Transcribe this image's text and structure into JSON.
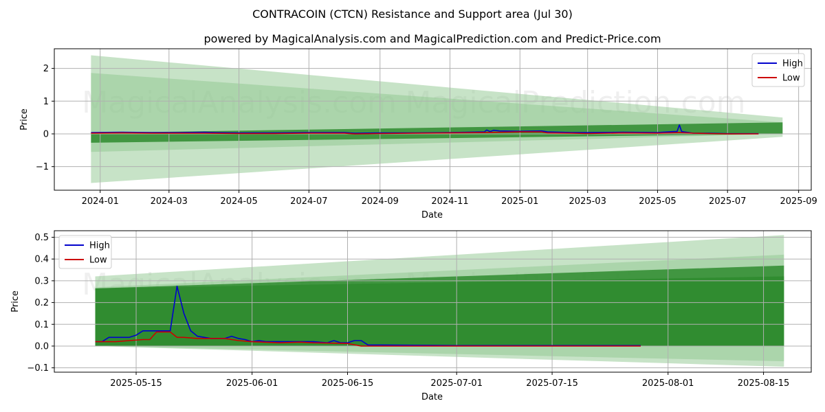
{
  "figure": {
    "title": "CONTRACOIN (CTCN) Resistance and Support area (Jul 30)",
    "subtitle": "powered by MagicalAnalysis.com and MagicalPrediction.com and Predict-Price.com",
    "watermarks": [
      "MagicalAnalysis.com",
      "MagicalPrediction.com"
    ]
  },
  "colors": {
    "high": "#0000cc",
    "low": "#cc0000",
    "band_dark": "#2e8b2e",
    "band_light": "#90c890",
    "grid": "#b0b0b0"
  },
  "chart_data": [
    {
      "type": "line",
      "title": "",
      "xlabel": "Date",
      "ylabel": "Price",
      "grid": true,
      "legend": "top-right",
      "xlim": [
        "2023-11-22",
        "2025-09-12"
      ],
      "ylim": [
        -1.72,
        2.6
      ],
      "x_ticks": [
        "2024-01",
        "2024-03",
        "2024-05",
        "2024-07",
        "2024-09",
        "2024-11",
        "2025-01",
        "2025-03",
        "2025-05",
        "2025-07",
        "2025-09"
      ],
      "x_tick_dates": [
        "2024-01-01",
        "2024-03-01",
        "2024-05-01",
        "2024-07-01",
        "2024-09-01",
        "2024-11-01",
        "2025-01-01",
        "2025-03-01",
        "2025-05-01",
        "2025-07-01",
        "2025-09-01"
      ],
      "y_ticks": [
        -1,
        0,
        1,
        2
      ],
      "y_tick_labels": [
        "−1",
        "0",
        "1",
        "2"
      ],
      "series": [
        {
          "name": "High",
          "color": "#0000cc",
          "points": [
            [
              "2023-12-24",
              0.04
            ],
            [
              "2024-01-20",
              0.05
            ],
            [
              "2024-02-15",
              0.04
            ],
            [
              "2024-03-10",
              0.04
            ],
            [
              "2024-04-01",
              0.05
            ],
            [
              "2024-04-10",
              0.04
            ],
            [
              "2024-05-01",
              0.03
            ],
            [
              "2024-06-01",
              0.03
            ],
            [
              "2024-07-01",
              0.04
            ],
            [
              "2024-08-01",
              0.04
            ],
            [
              "2024-08-10",
              0.02
            ],
            [
              "2024-09-01",
              0.03
            ],
            [
              "2024-10-01",
              0.03
            ],
            [
              "2024-11-01",
              0.04
            ],
            [
              "2024-12-01",
              0.06
            ],
            [
              "2024-12-03",
              0.12
            ],
            [
              "2024-12-06",
              0.07
            ],
            [
              "2024-12-09",
              0.11
            ],
            [
              "2024-12-14",
              0.09
            ],
            [
              "2025-01-01",
              0.08
            ],
            [
              "2025-01-20",
              0.09
            ],
            [
              "2025-01-25",
              0.06
            ],
            [
              "2025-02-15",
              0.04
            ],
            [
              "2025-03-01",
              0.04
            ],
            [
              "2025-04-01",
              0.05
            ],
            [
              "2025-05-01",
              0.04
            ],
            [
              "2025-05-15",
              0.07
            ],
            [
              "2025-05-18",
              0.07
            ],
            [
              "2025-05-20",
              0.275
            ],
            [
              "2025-05-22",
              0.07
            ],
            [
              "2025-06-01",
              0.02
            ],
            [
              "2025-06-15",
              0.02
            ],
            [
              "2025-07-01",
              0.005
            ],
            [
              "2025-07-28",
              0.005
            ]
          ]
        },
        {
          "name": "Low",
          "color": "#cc0000",
          "points": [
            [
              "2023-12-24",
              0.02
            ],
            [
              "2024-01-20",
              0.03
            ],
            [
              "2024-02-15",
              0.02
            ],
            [
              "2024-03-10",
              0.02
            ],
            [
              "2024-04-01",
              0.02
            ],
            [
              "2024-05-01",
              0.01
            ],
            [
              "2024-06-01",
              0.01
            ],
            [
              "2024-07-01",
              0.02
            ],
            [
              "2024-08-01",
              0.02
            ],
            [
              "2024-08-10",
              0.0
            ],
            [
              "2024-09-01",
              0.01
            ],
            [
              "2024-10-01",
              0.02
            ],
            [
              "2024-11-01",
              0.03
            ],
            [
              "2024-12-01",
              0.04
            ],
            [
              "2025-01-01",
              0.06
            ],
            [
              "2025-01-20",
              0.06
            ],
            [
              "2025-01-25",
              0.03
            ],
            [
              "2025-02-15",
              0.02
            ],
            [
              "2025-03-01",
              0.01
            ],
            [
              "2025-04-01",
              0.03
            ],
            [
              "2025-05-01",
              0.02
            ],
            [
              "2025-05-20",
              0.04
            ],
            [
              "2025-06-01",
              0.02
            ],
            [
              "2025-06-15",
              0.01
            ],
            [
              "2025-07-01",
              0.0
            ],
            [
              "2025-07-28",
              0.0
            ]
          ]
        }
      ],
      "bands": [
        {
          "style": "light",
          "x": [
            "2023-12-24",
            "2025-08-18"
          ],
          "upper": [
            2.4,
            0.5
          ],
          "lower": [
            -1.5,
            -0.09
          ]
        },
        {
          "style": "light",
          "x": [
            "2023-12-24",
            "2025-08-18"
          ],
          "upper": [
            1.86,
            0.35
          ],
          "lower": [
            -0.55,
            0.0
          ]
        },
        {
          "style": "dark",
          "x": [
            "2023-12-24",
            "2025-08-18"
          ],
          "upper": [
            0.03,
            0.35
          ],
          "lower": [
            -0.27,
            0.0
          ]
        }
      ]
    },
    {
      "type": "line",
      "title": "",
      "xlabel": "Date",
      "ylabel": "Price",
      "grid": true,
      "legend": "top-left",
      "xlim": [
        "2025-05-03",
        "2025-08-22"
      ],
      "ylim": [
        -0.12,
        0.53
      ],
      "x_ticks": [
        "2025-05-15",
        "2025-06-01",
        "2025-06-15",
        "2025-07-01",
        "2025-07-15",
        "2025-08-01",
        "2025-08-15"
      ],
      "y_ticks": [
        -0.1,
        0.0,
        0.1,
        0.2,
        0.3,
        0.4,
        0.5
      ],
      "y_tick_labels": [
        "−0.1",
        "0.0",
        "0.1",
        "0.2",
        "0.3",
        "0.4",
        "0.5"
      ],
      "series": [
        {
          "name": "High",
          "color": "#0000cc",
          "points": [
            [
              "2025-05-09",
              0.02
            ],
            [
              "2025-05-10",
              0.02
            ],
            [
              "2025-05-11",
              0.04
            ],
            [
              "2025-05-12",
              0.04
            ],
            [
              "2025-05-13",
              0.04
            ],
            [
              "2025-05-14",
              0.04
            ],
            [
              "2025-05-15",
              0.05
            ],
            [
              "2025-05-16",
              0.07
            ],
            [
              "2025-05-17",
              0.07
            ],
            [
              "2025-05-18",
              0.07
            ],
            [
              "2025-05-19",
              0.07
            ],
            [
              "2025-05-20",
              0.07
            ],
            [
              "2025-05-21",
              0.275
            ],
            [
              "2025-05-22",
              0.15
            ],
            [
              "2025-05-23",
              0.07
            ],
            [
              "2025-05-24",
              0.045
            ],
            [
              "2025-05-25",
              0.04
            ],
            [
              "2025-05-26",
              0.035
            ],
            [
              "2025-05-27",
              0.035
            ],
            [
              "2025-05-28",
              0.035
            ],
            [
              "2025-05-29",
              0.045
            ],
            [
              "2025-05-30",
              0.035
            ],
            [
              "2025-05-31",
              0.03
            ],
            [
              "2025-06-01",
              0.02
            ],
            [
              "2025-06-02",
              0.025
            ],
            [
              "2025-06-03",
              0.02
            ],
            [
              "2025-06-05",
              0.02
            ],
            [
              "2025-06-08",
              0.02
            ],
            [
              "2025-06-10",
              0.02
            ],
            [
              "2025-06-12",
              0.015
            ],
            [
              "2025-06-13",
              0.025
            ],
            [
              "2025-06-14",
              0.015
            ],
            [
              "2025-06-15",
              0.015
            ],
            [
              "2025-06-16",
              0.025
            ],
            [
              "2025-06-17",
              0.025
            ],
            [
              "2025-06-18",
              0.005
            ],
            [
              "2025-06-20",
              0.005
            ],
            [
              "2025-07-01",
              0.002
            ],
            [
              "2025-07-28",
              0.002
            ]
          ]
        },
        {
          "name": "Low",
          "color": "#cc0000",
          "points": [
            [
              "2025-05-09",
              0.02
            ],
            [
              "2025-05-12",
              0.02
            ],
            [
              "2025-05-14",
              0.025
            ],
            [
              "2025-05-16",
              0.03
            ],
            [
              "2025-05-17",
              0.03
            ],
            [
              "2025-05-18",
              0.065
            ],
            [
              "2025-05-19",
              0.065
            ],
            [
              "2025-05-20",
              0.065
            ],
            [
              "2025-05-21",
              0.04
            ],
            [
              "2025-05-22",
              0.04
            ],
            [
              "2025-05-24",
              0.035
            ],
            [
              "2025-05-25",
              0.035
            ],
            [
              "2025-05-28",
              0.035
            ],
            [
              "2025-05-30",
              0.025
            ],
            [
              "2025-06-01",
              0.02
            ],
            [
              "2025-06-05",
              0.015
            ],
            [
              "2025-06-08",
              0.018
            ],
            [
              "2025-06-10",
              0.015
            ],
            [
              "2025-06-15",
              0.012
            ],
            [
              "2025-06-17",
              0.0
            ],
            [
              "2025-06-20",
              0.0
            ],
            [
              "2025-07-01",
              0.0
            ],
            [
              "2025-07-28",
              0.0
            ]
          ]
        }
      ],
      "bands": [
        {
          "style": "light",
          "x": [
            "2025-05-09",
            "2025-08-18"
          ],
          "upper": [
            0.32,
            0.51
          ],
          "lower": [
            0.0,
            -0.095
          ]
        },
        {
          "style": "light",
          "x": [
            "2025-05-09",
            "2025-08-18"
          ],
          "upper": [
            0.27,
            0.42
          ],
          "lower": [
            0.0,
            -0.07
          ]
        },
        {
          "style": "dark",
          "x": [
            "2025-05-09",
            "2025-08-18"
          ],
          "upper": [
            0.265,
            0.37
          ],
          "lower": [
            0.0,
            0.0
          ]
        },
        {
          "style": "dark",
          "x": [
            "2025-05-09",
            "2025-08-18"
          ],
          "upper": [
            0.265,
            0.32
          ],
          "lower": [
            0.0,
            0.0
          ]
        }
      ]
    }
  ]
}
